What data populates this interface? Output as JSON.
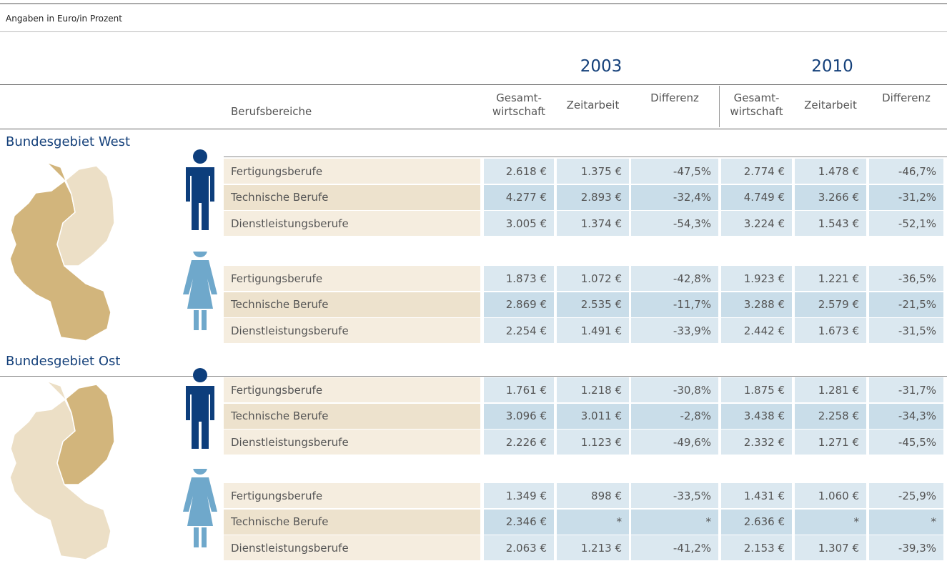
{
  "note": "Angaben in Euro/in Prozent",
  "years": [
    "2003",
    "2010"
  ],
  "header": {
    "label": "Berufsbereiche",
    "columns": [
      "Gesamt-\nwirtschaft",
      "Zeitarbeit",
      "Differenz",
      "Gesamt-\nwirtschaft",
      "Zeitarbeit",
      "Differenz"
    ]
  },
  "sections": [
    {
      "title": "Bundesgebiet West",
      "groups": [
        {
          "rows": [
            {
              "label": "Fertigungsberufe",
              "values": [
                "2.618 €",
                "1.375 €",
                "-47,5%",
                "2.774 €",
                "1.478 €",
                "-46,7%"
              ]
            },
            {
              "label": "Technische Berufe",
              "values": [
                "4.277 €",
                "2.893 €",
                "-32,4%",
                "4.749 €",
                "3.266 €",
                "-31,2%"
              ]
            },
            {
              "label": "Dienstleistungsberufe",
              "values": [
                "3.005 €",
                "1.374 €",
                "-54,3%",
                "3.224 €",
                "1.543 €",
                "-52,1%"
              ]
            }
          ]
        },
        {
          "rows": [
            {
              "label": "Fertigungsberufe",
              "values": [
                "1.873 €",
                "1.072 €",
                "-42,8%",
                "1.923 €",
                "1.221 €",
                "-36,5%"
              ]
            },
            {
              "label": "Technische Berufe",
              "values": [
                "2.869 €",
                "2.535 €",
                "-11,7%",
                "3.288 €",
                "2.579 €",
                "-21,5%"
              ]
            },
            {
              "label": "Dienstleistungsberufe",
              "values": [
                "2.254 €",
                "1.491 €",
                "-33,9%",
                "2.442 €",
                "1.673 €",
                "-31,5%"
              ]
            }
          ]
        }
      ]
    },
    {
      "title": "Bundesgebiet Ost",
      "groups": [
        {
          "rows": [
            {
              "label": "Fertigungsberufe",
              "values": [
                "1.761 €",
                "1.218 €",
                "-30,8%",
                "1.875 €",
                "1.281 €",
                "-31,7%"
              ]
            },
            {
              "label": "Technische Berufe",
              "values": [
                "3.096 €",
                "3.011 €",
                "-2,8%",
                "3.438 €",
                "2.258 €",
                "-34,3%"
              ]
            },
            {
              "label": "Dienstleistungsberufe",
              "values": [
                "2.226 €",
                "1.123 €",
                "-49,6%",
                "2.332 €",
                "1.271 €",
                "-45,5%"
              ]
            }
          ]
        },
        {
          "rows": [
            {
              "label": "Fertigungsberufe",
              "values": [
                "1.349 €",
                "898 €",
                "-33,5%",
                "1.431 €",
                "1.060 €",
                "-25,9%"
              ]
            },
            {
              "label": "Technische Berufe",
              "values": [
                "2.346 €",
                "*",
                "*",
                "2.636 €",
                "*",
                "*"
              ]
            },
            {
              "label": "Dienstleistungsberufe",
              "values": [
                "2.063 €",
                "1.213 €",
                "-41,2%",
                "2.153 €",
                "1.307 €",
                "-39,3%"
              ]
            }
          ]
        }
      ]
    }
  ]
}
